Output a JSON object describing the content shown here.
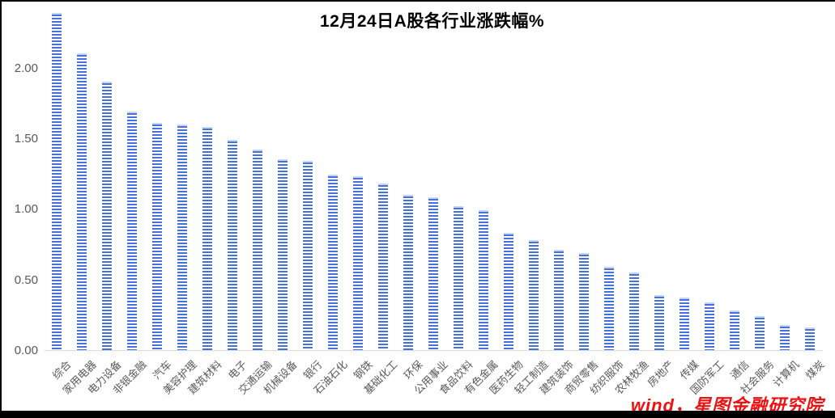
{
  "chart_data": {
    "type": "bar",
    "title": "12月24日A股各行业涨跌幅%",
    "xlabel": "",
    "ylabel": "",
    "categories": [
      "综合",
      "家用电器",
      "电力设备",
      "非银金融",
      "汽车",
      "美容护理",
      "建筑材料",
      "电子",
      "交通运输",
      "机械设备",
      "银行",
      "石油石化",
      "钢铁",
      "基础化工",
      "环保",
      "公用事业",
      "食品饮料",
      "有色金属",
      "医药生物",
      "轻工制造",
      "建筑装饰",
      "商贸零售",
      "纺织服饰",
      "农林牧渔",
      "房地产",
      "传媒",
      "国防军工",
      "通信",
      "社会服务",
      "计算机",
      "煤炭"
    ],
    "values": [
      2.39,
      2.1,
      1.9,
      1.69,
      1.61,
      1.6,
      1.58,
      1.49,
      1.42,
      1.35,
      1.34,
      1.24,
      1.23,
      1.18,
      1.1,
      1.08,
      1.02,
      0.99,
      0.83,
      0.78,
      0.71,
      0.69,
      0.59,
      0.55,
      0.39,
      0.37,
      0.34,
      0.28,
      0.24,
      0.18,
      0.16
    ],
    "ylim": [
      0,
      2.4
    ],
    "yticks": [
      0.0,
      0.5,
      1.0,
      1.5,
      2.0
    ],
    "ytick_labels": [
      "0.00",
      "0.50",
      "1.00",
      "1.50",
      "2.00"
    ],
    "grid": false,
    "legend": false,
    "bar_color": "#4671dd",
    "bar_pattern": "horizontal-stripes",
    "axis_text_color": "#595959",
    "axis_line_color": "#d9d9d9"
  },
  "watermark": {
    "text": "wind，星图金融研究院",
    "color": "#ee1111"
  }
}
